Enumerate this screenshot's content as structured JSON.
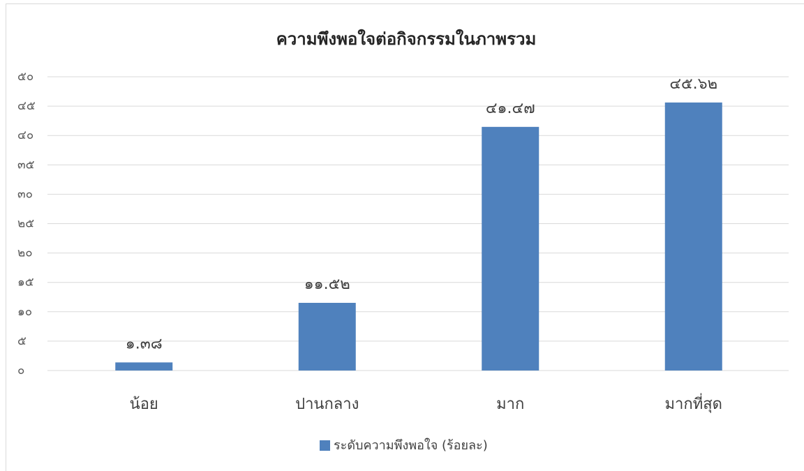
{
  "chart_data": {
    "type": "bar",
    "title": "ความพึงพอใจต่อกิจกรรมในภาพรวม",
    "categories": [
      "น้อย",
      "ปานกลาง",
      "มาก",
      "มากที่สุด"
    ],
    "series": [
      {
        "name": "ระดับความพึงพอใจ (ร้อยละ)",
        "color": "#4f81bd",
        "values": [
          1.38,
          11.52,
          41.47,
          45.62
        ],
        "value_labels": [
          "๑.๓๘",
          "๑๑.๕๒",
          "๔๑.๔๗",
          "๔๕.๖๒"
        ]
      }
    ],
    "ylim": [
      0,
      50
    ],
    "yticks": [
      {
        "value": 0,
        "label": "๐"
      },
      {
        "value": 5,
        "label": "๕"
      },
      {
        "value": 10,
        "label": "๑๐"
      },
      {
        "value": 15,
        "label": "๑๕"
      },
      {
        "value": 20,
        "label": "๒๐"
      },
      {
        "value": 25,
        "label": "๒๕"
      },
      {
        "value": 30,
        "label": "๓๐"
      },
      {
        "value": 35,
        "label": "๓๕"
      },
      {
        "value": 40,
        "label": "๔๐"
      },
      {
        "value": 45,
        "label": "๔๕"
      },
      {
        "value": 50,
        "label": "๕๐"
      }
    ],
    "grid": true,
    "legend": "bottom"
  }
}
